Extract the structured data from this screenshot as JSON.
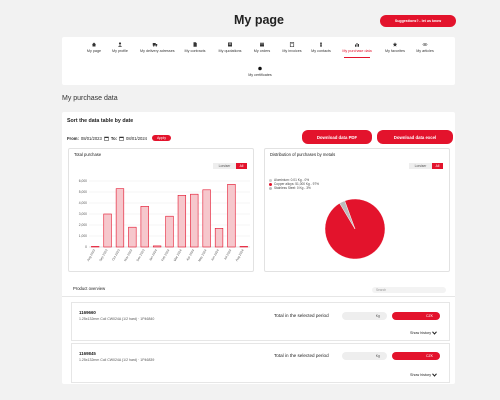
{
  "header": {
    "title": "My page",
    "suggestion_button": "Suggestions?.. let us know"
  },
  "nav": {
    "items": [
      {
        "label": "My page",
        "icon": "home-icon",
        "active": false
      },
      {
        "label": "My profile",
        "icon": "user-icon",
        "active": false
      },
      {
        "label": "My delivery adresses",
        "icon": "truck-icon",
        "active": false
      },
      {
        "label": "My contracts",
        "icon": "document-icon",
        "active": false
      },
      {
        "label": "My quotations",
        "icon": "quotation-icon",
        "active": false
      },
      {
        "label": "My orders",
        "icon": "orders-icon",
        "active": false
      },
      {
        "label": "My invoices",
        "icon": "invoice-icon",
        "active": false
      },
      {
        "label": "My contacts",
        "icon": "contact-icon",
        "active": false
      },
      {
        "label": "My purchase data",
        "icon": "bar-chart-icon",
        "active": true
      },
      {
        "label": "My favorites",
        "icon": "star-icon",
        "active": false
      },
      {
        "label": "My articles",
        "icon": "link-icon",
        "active": false
      },
      {
        "label": "My certificates",
        "icon": "certificate-icon",
        "active": false
      }
    ]
  },
  "section_title": "My purchase data",
  "filter": {
    "heading": "Sort the data table by date",
    "from_label": "From:",
    "from_value": "08/01/2023",
    "to_label": "To:",
    "to_value": "08/01/2024",
    "apply_label": "Apply",
    "download_pdf": "Download data PDF",
    "download_excel": "Download data excel"
  },
  "accent_color": "#e3132c",
  "chart_data": [
    {
      "type": "bar",
      "title": "Total purchase",
      "toggle": {
        "off_label": "Lorsiser",
        "on_label": "All"
      },
      "categories": [
        "Aug 2023",
        "Sep 2023",
        "Oct 2023",
        "Nov 2023",
        "Dec 2023",
        "Jan 2024",
        "Feb 2024",
        "Mar 2024",
        "Apr 2024",
        "May 2024",
        "Jun 2024",
        "Jul 2024",
        "Aug 2024"
      ],
      "values": [
        50,
        3000,
        5300,
        1800,
        3700,
        100,
        2800,
        4700,
        4800,
        5200,
        1700,
        5700,
        50
      ],
      "ylim": [
        0,
        6000
      ],
      "yticks": [
        "0",
        "1,000",
        "2,000",
        "3,000",
        "4,000",
        "5,000",
        "6,000"
      ],
      "grid": true
    },
    {
      "type": "pie",
      "title": "Distribution of purchases by metals",
      "toggle": {
        "off_label": "Lorsiser",
        "on_label": "All"
      },
      "slices": [
        {
          "label": "Aluminium: 0.01 Kg - 0%",
          "value": 0.01,
          "color": "#cfcfcf"
        },
        {
          "label": "Copper alloys: 51,000 Kg - 97%",
          "value": 97,
          "color": "#e3132c"
        },
        {
          "label": "Stainless Steel: 0 Kg - 3%",
          "value": 3,
          "color": "#bdbdbd"
        }
      ]
    }
  ],
  "product_overview": {
    "title": "Product overview",
    "search_placeholder": "Search",
    "products": [
      {
        "code": "1169660",
        "description": "1.25x132mm Coil CW024A (1/2 hard) · 1P46840",
        "total_label": "Total in the selected period",
        "kg_unit": "Kg",
        "czk_unit": "CZK",
        "show_history": "Show history"
      },
      {
        "code": "1169845",
        "description": "1.25x132mm Coil CW024A (1/2 hard) · 1P46839",
        "total_label": "Total in the selected period",
        "kg_unit": "Kg",
        "czk_unit": "CZK",
        "show_history": "Show history"
      }
    ]
  }
}
